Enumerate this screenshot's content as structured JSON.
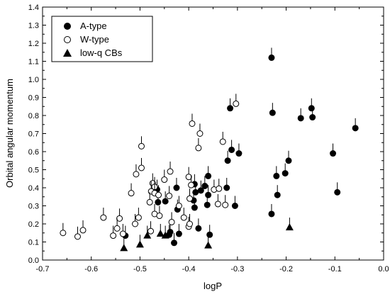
{
  "chart_data": {
    "type": "scatter",
    "xlabel": "logP",
    "ylabel": "Orbital angular momentum",
    "xlim": [
      -0.7,
      0.0
    ],
    "ylim": [
      0.0,
      1.4
    ],
    "x_ticks": [
      -0.7,
      -0.6,
      -0.5,
      -0.4,
      -0.3,
      -0.2,
      -0.1,
      0.0
    ],
    "x_tick_labels": [
      "-0.7",
      "-0.6",
      "-0.5",
      "-0.4",
      "-0.3",
      "-0.2",
      "-0.1",
      "0.0"
    ],
    "y_ticks": [
      0.0,
      0.1,
      0.2,
      0.3,
      0.4,
      0.5,
      0.6,
      0.7,
      0.8,
      0.9,
      1.0,
      1.1,
      1.2,
      1.3,
      1.4
    ],
    "y_tick_labels": [
      "0.0",
      "0.1",
      "0.2",
      "0.3",
      "0.4",
      "0.5",
      "0.6",
      "0.7",
      "0.8",
      "0.9",
      "1.0",
      "1.1",
      "1.2",
      "1.3",
      "1.4"
    ],
    "grid": false,
    "legend_position": "top-left",
    "series": [
      {
        "name": "A-type",
        "marker": "filled-circle",
        "error_bars": "upper",
        "points": [
          [
            -0.23,
            1.12
          ],
          [
            -0.228,
            0.815
          ],
          [
            -0.315,
            0.84
          ],
          [
            -0.32,
            0.55
          ],
          [
            -0.312,
            0.61
          ],
          [
            -0.297,
            0.59
          ],
          [
            -0.148,
            0.84
          ],
          [
            -0.146,
            0.79
          ],
          [
            -0.17,
            0.785
          ],
          [
            -0.058,
            0.73
          ],
          [
            -0.104,
            0.59
          ],
          [
            -0.195,
            0.55
          ],
          [
            -0.202,
            0.48
          ],
          [
            -0.22,
            0.465
          ],
          [
            -0.218,
            0.36
          ],
          [
            -0.095,
            0.375
          ],
          [
            -0.23,
            0.255
          ],
          [
            -0.36,
            0.465
          ],
          [
            -0.367,
            0.41
          ],
          [
            -0.375,
            0.385
          ],
          [
            -0.388,
            0.42
          ],
          [
            -0.386,
            0.375
          ],
          [
            -0.36,
            0.36
          ],
          [
            -0.39,
            0.33
          ],
          [
            -0.388,
            0.29
          ],
          [
            -0.362,
            0.305
          ],
          [
            -0.305,
            0.3
          ],
          [
            -0.322,
            0.4
          ],
          [
            -0.425,
            0.4
          ],
          [
            -0.423,
            0.28
          ],
          [
            -0.465,
            0.39
          ],
          [
            -0.463,
            0.32
          ],
          [
            -0.448,
            0.325
          ],
          [
            -0.438,
            0.155
          ],
          [
            -0.44,
            0.14
          ],
          [
            -0.43,
            0.095
          ],
          [
            -0.42,
            0.145
          ],
          [
            -0.38,
            0.175
          ],
          [
            -0.357,
            0.14
          ],
          [
            -0.53,
            0.135
          ]
        ]
      },
      {
        "name": "W-type",
        "marker": "open-circle",
        "error_bars": "upper",
        "points": [
          [
            -0.303,
            0.865
          ],
          [
            -0.393,
            0.755
          ],
          [
            -0.377,
            0.7
          ],
          [
            -0.38,
            0.62
          ],
          [
            -0.33,
            0.655
          ],
          [
            -0.497,
            0.63
          ],
          [
            -0.497,
            0.51
          ],
          [
            -0.508,
            0.475
          ],
          [
            -0.474,
            0.425
          ],
          [
            -0.47,
            0.405
          ],
          [
            -0.45,
            0.445
          ],
          [
            -0.438,
            0.49
          ],
          [
            -0.4,
            0.46
          ],
          [
            -0.518,
            0.37
          ],
          [
            -0.477,
            0.38
          ],
          [
            -0.47,
            0.37
          ],
          [
            -0.462,
            0.36
          ],
          [
            -0.44,
            0.355
          ],
          [
            -0.42,
            0.3
          ],
          [
            -0.398,
            0.34
          ],
          [
            -0.395,
            0.415
          ],
          [
            -0.348,
            0.39
          ],
          [
            -0.338,
            0.395
          ],
          [
            -0.34,
            0.31
          ],
          [
            -0.325,
            0.305
          ],
          [
            -0.48,
            0.32
          ],
          [
            -0.47,
            0.255
          ],
          [
            -0.46,
            0.245
          ],
          [
            -0.435,
            0.21
          ],
          [
            -0.41,
            0.235
          ],
          [
            -0.4,
            0.185
          ],
          [
            -0.398,
            0.2
          ],
          [
            -0.503,
            0.235
          ],
          [
            -0.542,
            0.23
          ],
          [
            -0.575,
            0.235
          ],
          [
            -0.547,
            0.175
          ],
          [
            -0.535,
            0.145
          ],
          [
            -0.555,
            0.135
          ],
          [
            -0.51,
            0.2
          ],
          [
            -0.617,
            0.165
          ],
          [
            -0.628,
            0.13
          ],
          [
            -0.658,
            0.15
          ],
          [
            -0.478,
            0.16
          ]
        ]
      },
      {
        "name": "low-q CBs",
        "marker": "filled-triangle",
        "error_bars": "upper",
        "points": [
          [
            -0.533,
            0.065
          ],
          [
            -0.5,
            0.085
          ],
          [
            -0.485,
            0.135
          ],
          [
            -0.458,
            0.145
          ],
          [
            -0.448,
            0.135
          ],
          [
            -0.36,
            0.08
          ],
          [
            -0.193,
            0.18
          ]
        ]
      }
    ]
  }
}
